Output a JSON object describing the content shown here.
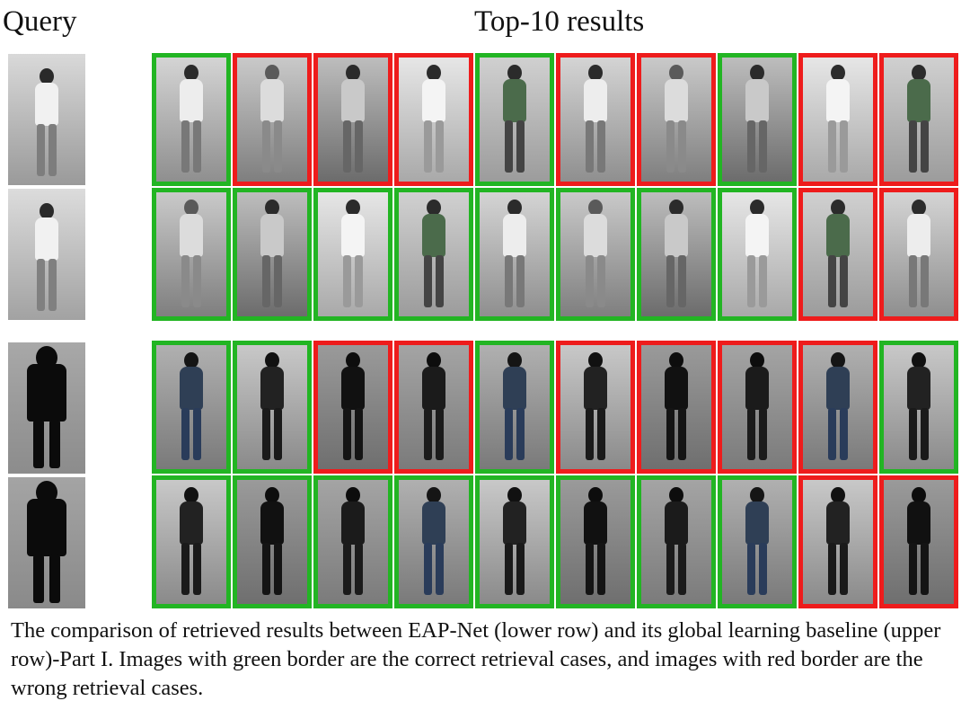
{
  "headers": {
    "query": "Query",
    "top": "Top-10 results"
  },
  "colors": {
    "correct": "#22b523",
    "wrong": "#ee1c1c"
  },
  "rows": [
    {
      "label": "group-1-baseline",
      "results": [
        "correct",
        "wrong",
        "wrong",
        "wrong",
        "correct",
        "wrong",
        "wrong",
        "correct",
        "wrong",
        "wrong"
      ]
    },
    {
      "label": "group-1-eapnet",
      "results": [
        "correct",
        "correct",
        "correct",
        "correct",
        "correct",
        "correct",
        "correct",
        "correct",
        "wrong",
        "wrong"
      ]
    },
    {
      "label": "group-2-baseline",
      "results": [
        "correct",
        "correct",
        "wrong",
        "wrong",
        "correct",
        "wrong",
        "wrong",
        "wrong",
        "wrong",
        "correct"
      ]
    },
    {
      "label": "group-2-eapnet",
      "results": [
        "correct",
        "correct",
        "correct",
        "correct",
        "correct",
        "correct",
        "correct",
        "correct",
        "wrong",
        "wrong"
      ]
    }
  ],
  "caption": "The comparison of retrieved results between EAP-Net (lower row) and its global learning baseline (upper row)-Part I. Images with green border are the correct retrieval cases, and images with red border are the wrong retrieval cases."
}
